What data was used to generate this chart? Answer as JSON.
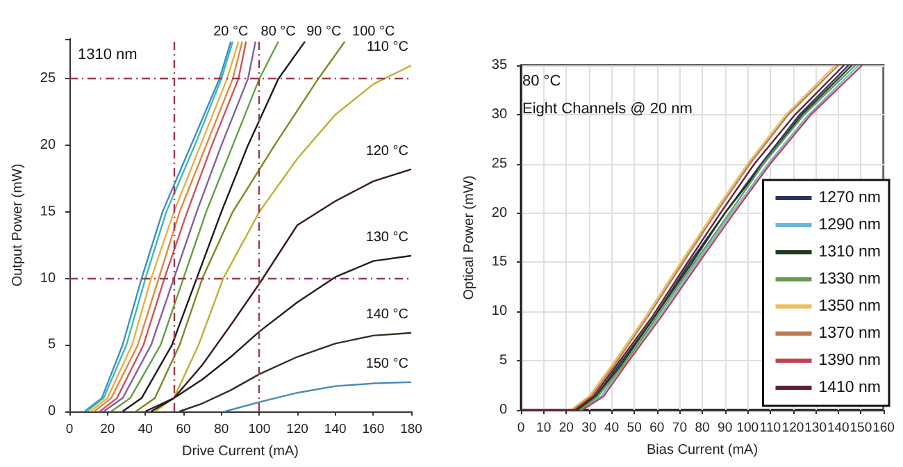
{
  "chart_data": [
    {
      "type": "line",
      "annotations": [
        "1310 nm"
      ],
      "xlabel": "Drive Current (mA)",
      "ylabel": "Output Power (mW)",
      "xlim": [
        0,
        180
      ],
      "xticks": [
        0,
        20,
        40,
        60,
        80,
        100,
        120,
        140,
        160,
        180
      ],
      "ylim": [
        0,
        28
      ],
      "yticks": [
        0,
        5,
        10,
        15,
        20,
        25
      ],
      "grid": false,
      "legend": false,
      "marker": "none",
      "series": [
        {
          "name": "20 °C",
          "color": "#3a8fc8",
          "x": [
            8,
            17,
            28,
            38,
            49,
            64,
            79,
            85
          ],
          "values": [
            0,
            1,
            5,
            10,
            15,
            20,
            25,
            27.8
          ]
        },
        {
          "color": "#40b8b0",
          "x": [
            9,
            18,
            30,
            40,
            51,
            66,
            80,
            86
          ],
          "values": [
            0,
            1,
            5,
            10,
            15,
            20,
            25,
            27.8
          ]
        },
        {
          "color": "#e8b040",
          "x": [
            11,
            20,
            33,
            43,
            55,
            69,
            83,
            89
          ],
          "values": [
            0,
            1,
            5,
            10,
            15,
            20,
            25,
            27.8
          ]
        },
        {
          "color": "#e08840",
          "x": [
            13,
            22,
            36,
            47,
            58,
            72,
            86,
            91
          ],
          "values": [
            0,
            1,
            5,
            10,
            15,
            20,
            25,
            27.8
          ]
        },
        {
          "color": "#d05060",
          "x": [
            16,
            25,
            39,
            50,
            62,
            75,
            89,
            93
          ],
          "values": [
            0,
            1,
            5,
            10,
            15,
            20,
            25,
            27.8
          ]
        },
        {
          "color": "#8060a0",
          "x": [
            18,
            28,
            43,
            55,
            67,
            80,
            94,
            98
          ],
          "values": [
            0,
            1,
            5,
            10,
            15,
            20,
            25,
            27.8
          ]
        },
        {
          "name": "80 °C",
          "color": "#60a040",
          "x": [
            22,
            32,
            48,
            60,
            72,
            86,
            100,
            110
          ],
          "values": [
            0,
            1,
            5,
            10,
            15,
            20,
            25,
            27.8
          ]
        },
        {
          "name": "90 °C",
          "color": "#1a1a1a",
          "x": [
            28,
            38,
            54,
            67,
            80,
            94,
            110,
            124
          ],
          "values": [
            0,
            1,
            5,
            10,
            15,
            20,
            25,
            27.8
          ]
        },
        {
          "name": "100 °C",
          "color": "#7a8a20",
          "x": [
            35,
            45,
            58,
            70,
            86,
            108,
            131,
            145
          ],
          "values": [
            0,
            1,
            5,
            10,
            15,
            20,
            25,
            27.8
          ]
        },
        {
          "name": "110 °C",
          "color": "#c0b030",
          "x": [
            45,
            55,
            68,
            81,
            100,
            120,
            140,
            160,
            180
          ],
          "values": [
            0,
            1,
            5,
            10,
            15,
            19,
            22.3,
            24.6,
            26
          ]
        },
        {
          "name": "120 °C",
          "color": "#3a1a1a",
          "x": [
            40,
            55,
            70,
            85,
            100,
            120,
            140,
            160,
            180
          ],
          "values": [
            0,
            1,
            3.5,
            6.5,
            9.6,
            14,
            15.8,
            17.3,
            18.2
          ]
        },
        {
          "name": "130 °C",
          "color": "#202020",
          "x": [
            43,
            55,
            70,
            85,
            100,
            120,
            140,
            160,
            180
          ],
          "values": [
            0,
            1,
            2.4,
            4.1,
            6,
            8.2,
            10.1,
            11.3,
            11.7
          ]
        },
        {
          "name": "140 °C",
          "color": "#303020",
          "x": [
            58,
            70,
            85,
            100,
            120,
            140,
            160,
            180
          ],
          "values": [
            0,
            0.6,
            1.6,
            2.8,
            4.1,
            5.1,
            5.7,
            5.9
          ]
        },
        {
          "name": "150 °C",
          "color": "#4a8ab8",
          "x": [
            82,
            100,
            120,
            140,
            160,
            180
          ],
          "values": [
            0,
            0.7,
            1.4,
            1.9,
            2.1,
            2.2
          ]
        }
      ],
      "ref_lines": [
        {
          "axis": "y",
          "value": 25,
          "color": "#a03848",
          "line_style": "dashed"
        },
        {
          "axis": "y",
          "value": 10,
          "color": "#a03848",
          "line_style": "dashed"
        },
        {
          "axis": "x",
          "value": 55,
          "color": "#a03848",
          "line_style": "dashed"
        },
        {
          "axis": "x",
          "value": 100,
          "color": "#a03848",
          "line_style": "dashed"
        }
      ]
    },
    {
      "type": "line",
      "annotations": [
        "80 °C",
        "Eight Channels @ 20 nm"
      ],
      "xlabel": "Bias Current (mA)",
      "ylabel": "Optical Power (mW)",
      "xlim": [
        0,
        160
      ],
      "xticks": [
        0,
        10,
        20,
        30,
        40,
        50,
        60,
        70,
        80,
        90,
        100,
        110,
        120,
        130,
        140,
        150,
        160
      ],
      "ylim": [
        0,
        35
      ],
      "yticks": [
        0,
        5,
        10,
        15,
        20,
        25,
        30,
        35
      ],
      "grid": true,
      "legend": "bottom right",
      "marker": "none",
      "series": [
        {
          "name": "1270 nm",
          "color": "#2a3560",
          "x": [
            25,
            33,
            43,
            59,
            74,
            90,
            106,
            123,
            144.5
          ],
          "values": [
            0,
            1.4,
            4.5,
            9.5,
            14.8,
            20,
            25,
            30,
            35
          ]
        },
        {
          "name": "1290 nm",
          "color": "#6ab8d8",
          "x": [
            26,
            35.5,
            45,
            61,
            77,
            93,
            109,
            127,
            149
          ],
          "values": [
            0,
            1.4,
            4.5,
            9.5,
            14.8,
            20,
            25,
            30,
            35
          ]
        },
        {
          "name": "1310 nm",
          "color": "#1e3a20",
          "x": [
            25,
            33,
            44,
            59,
            75,
            90,
            107,
            124,
            146
          ],
          "values": [
            0,
            1.4,
            4.5,
            9.5,
            14.8,
            20,
            25,
            30,
            35
          ]
        },
        {
          "name": "1330 nm",
          "color": "#6a9a50",
          "x": [
            26,
            34,
            45,
            60,
            76,
            92,
            107,
            125,
            147.5
          ],
          "values": [
            0,
            1.4,
            4.5,
            9.5,
            14.8,
            20,
            25,
            30,
            35
          ]
        },
        {
          "name": "1350 nm",
          "color": "#e8c060",
          "x": [
            0,
            22,
            30,
            40,
            55,
            70,
            85,
            100,
            117,
            138.6
          ],
          "values": [
            0,
            0,
            1.4,
            4.5,
            9.5,
            14.8,
            20,
            25,
            30,
            35
          ]
        },
        {
          "name": "1370 nm",
          "color": "#c07850",
          "x": [
            23,
            31,
            41,
            56,
            71,
            86,
            101,
            118,
            140
          ],
          "values": [
            0,
            1.4,
            4.5,
            9.5,
            14.8,
            20,
            25,
            30,
            35
          ]
        },
        {
          "name": "1390 nm",
          "color": "#c04050",
          "x": [
            27,
            36.5,
            46,
            62,
            78,
            94,
            110,
            128,
            150.5
          ],
          "values": [
            0,
            1.4,
            4.5,
            9.5,
            14.8,
            20,
            25,
            30,
            35
          ]
        },
        {
          "name": "1410 nm",
          "color": "#602038",
          "x": [
            0,
            24,
            32,
            42,
            58,
            73,
            88,
            103,
            121,
            142.5
          ],
          "values": [
            0,
            0,
            1.4,
            4.5,
            9.5,
            14.8,
            20,
            25,
            30,
            35
          ]
        }
      ]
    }
  ]
}
